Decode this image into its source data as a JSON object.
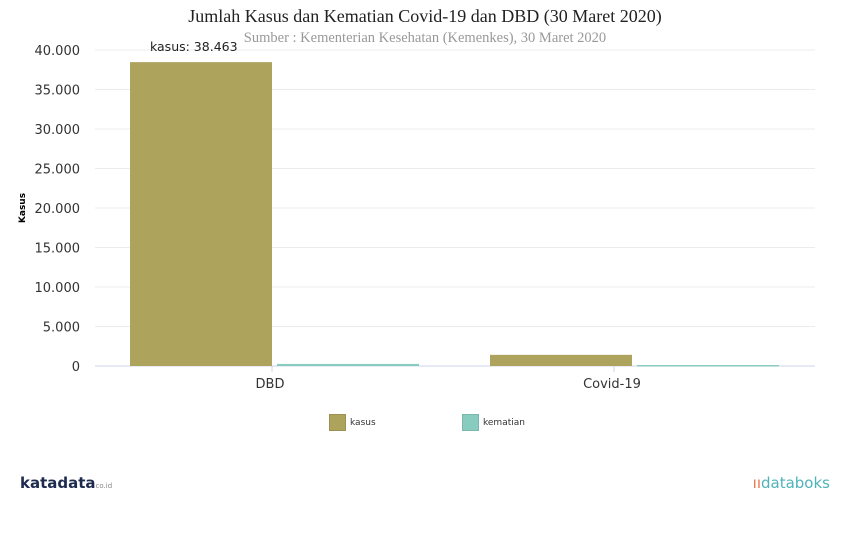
{
  "chart_data": {
    "type": "bar",
    "title": "Jumlah Kasus dan Kematian Covid-19 dan DBD (30 Maret 2020)",
    "subtitle": "Sumber : Kementerian Kesehatan (Kemenkes), 30 Maret 2020",
    "categories": [
      "DBD",
      "Covid-19"
    ],
    "series": [
      {
        "name": "kasus",
        "values": [
          38463,
          1414
        ],
        "color": "#ada35c"
      },
      {
        "name": "kematian",
        "values": [
          263,
          122
        ],
        "color": "#88cbbf"
      }
    ],
    "ylabel": "Kasus",
    "xlabel": "",
    "ylim": [
      0,
      40000
    ],
    "yticks": [
      0,
      5000,
      10000,
      15000,
      20000,
      25000,
      30000,
      35000,
      40000
    ],
    "ytick_labels": [
      "0",
      "5.000",
      "10.000",
      "15.000",
      "20.000",
      "25.000",
      "30.000",
      "35.000",
      "40.000"
    ],
    "data_label": "kasus: 38.463",
    "grid": true,
    "legend": "bottom"
  },
  "branding": {
    "left": "katadata",
    "left_suffix": "co.id",
    "right": "databoks"
  }
}
